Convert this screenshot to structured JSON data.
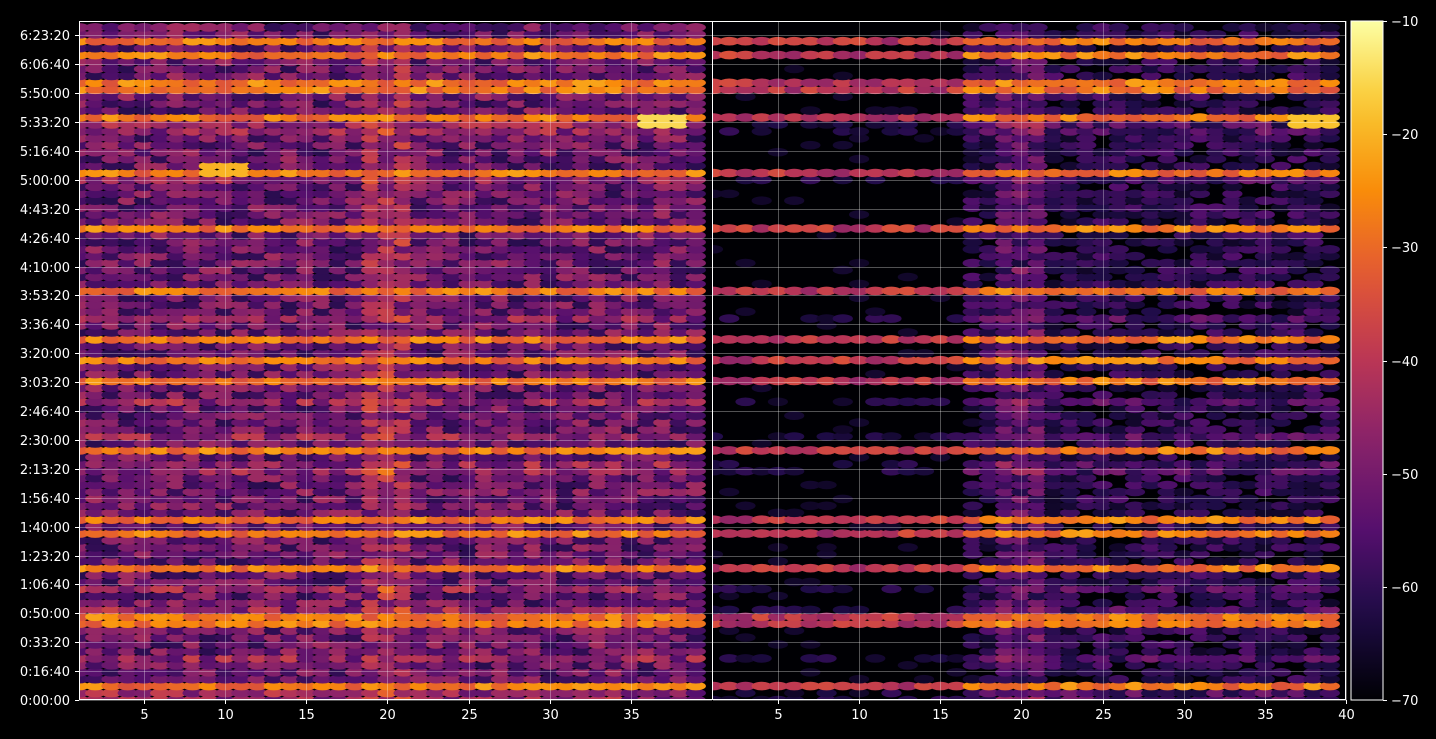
{
  "chart_data": {
    "type": "heatmap",
    "title": "",
    "xlabel": "",
    "ylabel": "",
    "colormap": "inferno",
    "background": "#000000",
    "grid": true,
    "value_range": [
      -70,
      -10
    ],
    "colorbar": {
      "placement": "right",
      "ticks": [
        -70,
        -60,
        -50,
        -40,
        -30,
        -20,
        -10
      ],
      "tick_labels": [
        "−70",
        "−60",
        "−50",
        "−40",
        "−30",
        "−20",
        "−10"
      ]
    },
    "y_axis": {
      "range_seconds": [
        0,
        23500
      ],
      "tick_seconds": [
        0,
        1000,
        2000,
        3000,
        4000,
        5000,
        6000,
        7000,
        8000,
        9000,
        10000,
        11000,
        12000,
        13000,
        14000,
        15000,
        16000,
        17000,
        18000,
        19000,
        20000,
        21000,
        22000,
        23000
      ],
      "tick_labels": [
        "0:00:00",
        "0:16:40",
        "0:33:20",
        "0:50:00",
        "1:06:40",
        "1:23:20",
        "1:40:00",
        "1:56:40",
        "2:13:20",
        "2:30:00",
        "2:46:40",
        "3:03:20",
        "3:20:00",
        "3:36:40",
        "3:53:20",
        "4:10:00",
        "4:26:40",
        "4:43:20",
        "5:00:00",
        "5:16:40",
        "5:33:20",
        "5:50:00",
        "6:06:40",
        "6:23:20"
      ]
    },
    "panels": [
      {
        "name": "left",
        "x_range": [
          1,
          40
        ],
        "x_ticks": [
          5,
          10,
          15,
          20,
          25,
          30,
          35
        ],
        "x_tick_labels": [
          "5",
          "10",
          "15",
          "20",
          "25",
          "30",
          "35"
        ],
        "base_level": -52,
        "noise": 9
      },
      {
        "name": "right",
        "x_range": [
          1,
          40
        ],
        "x_ticks": [
          5,
          10,
          15,
          20,
          25,
          30,
          35,
          40
        ],
        "x_tick_labels": [
          "5",
          "10",
          "15",
          "20",
          "25",
          "30",
          "35",
          "40"
        ],
        "base_level": -62,
        "noise": 7
      }
    ],
    "frequency_bins": [
      1,
      2,
      3,
      4,
      5,
      6,
      7,
      8,
      9,
      10,
      11,
      12,
      13,
      14,
      15,
      16,
      17,
      18,
      19,
      20,
      21,
      22,
      23,
      24,
      25,
      26,
      27,
      28,
      29,
      30,
      31,
      32,
      33,
      34,
      35,
      36,
      37,
      38,
      39
    ],
    "strong_rows_seconds": [
      400,
      2850,
      2650,
      4550,
      5700,
      6300,
      8650,
      11000,
      11750,
      12450,
      14200,
      16300,
      18250,
      20100,
      21250,
      22800,
      22300
    ],
    "strong_row_level": -28,
    "strong_columns": [
      19,
      20,
      21
    ],
    "strong_column_boost": 10,
    "peak_points": [
      {
        "panel": "left",
        "x": 37,
        "y_seconds": 20150,
        "value": -15
      },
      {
        "panel": "left",
        "x": 10,
        "y_seconds": 18250,
        "value": -20
      },
      {
        "panel": "right",
        "x": 38,
        "y_seconds": 20150,
        "value": -18
      }
    ]
  }
}
